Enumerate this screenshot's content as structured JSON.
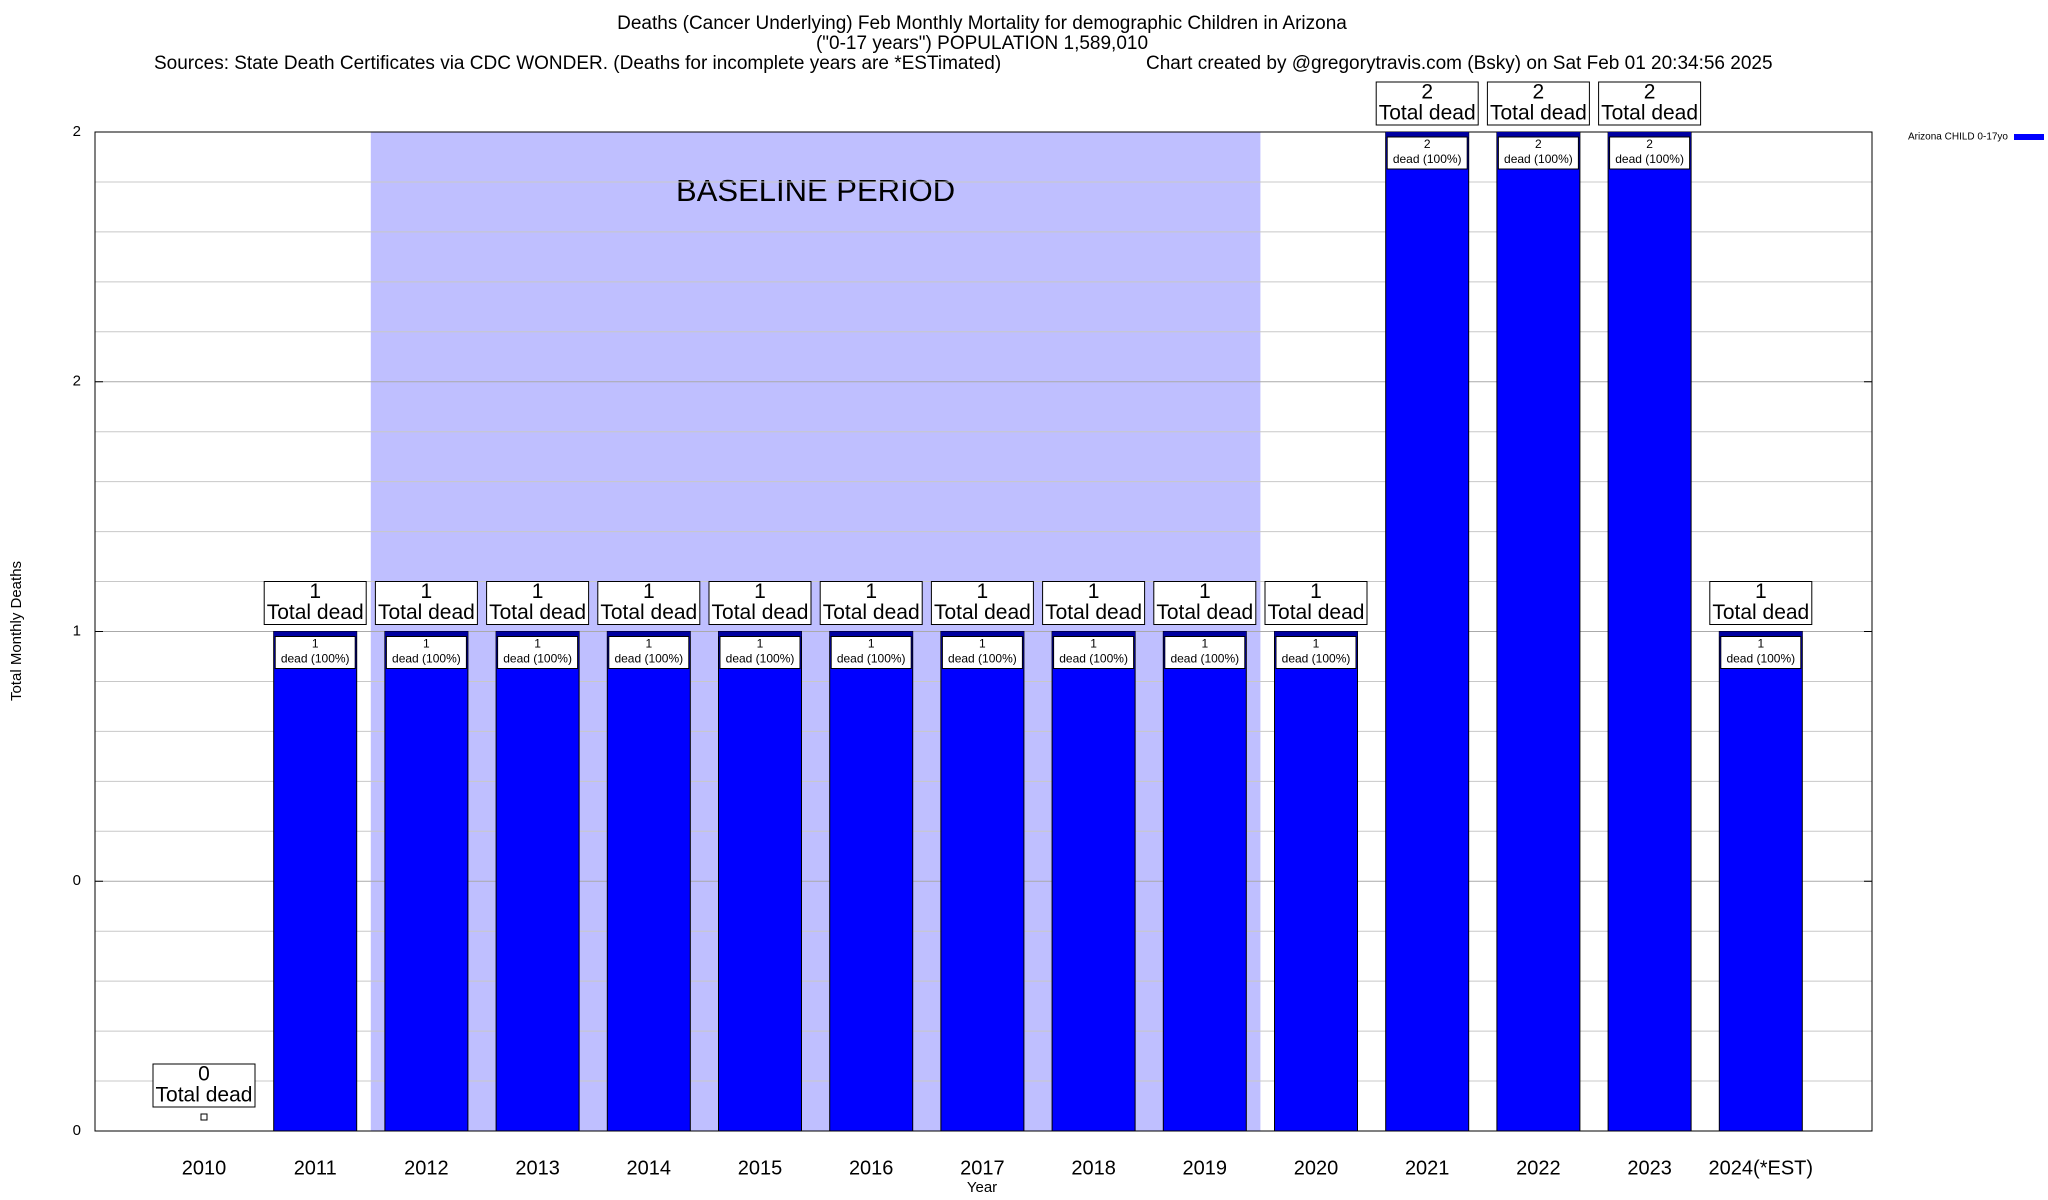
{
  "chart_data": {
    "type": "bar",
    "title": "Deaths (Cancer Underlying) Feb Monthly Mortality for demographic Children in Arizona",
    "subtitle": "(\"0-17 years\") POPULATION 1,589,010",
    "source": "Sources: State Death Certificates via CDC WONDER. (Deaths for incomplete years are *ESTimated)",
    "credit": "Chart created by @gregorytravis.com (Bsky) on Sat Feb 01 20:34:56 2025",
    "x_label": "Year",
    "y_label": "Total Monthly Deaths",
    "categories": [
      "2010",
      "2011",
      "2012",
      "2013",
      "2014",
      "2015",
      "2016",
      "2017",
      "2018",
      "2019",
      "2020",
      "2021",
      "2022",
      "2023",
      "2024(*EST)"
    ],
    "series": [
      {
        "name": "Arizona CHILD 0-17yo",
        "color": "#0000ff",
        "values": [
          0,
          1,
          1,
          1,
          1,
          1,
          1,
          1,
          1,
          1,
          1,
          2,
          2,
          2,
          1
        ]
      }
    ],
    "total_label": "Total dead",
    "inner_label": "dead (100%)",
    "baseline": {
      "label": "BASELINE PERIOD",
      "from": "2012",
      "to": "2019",
      "color": "#bfbfff"
    },
    "ylim": [
      0,
      2
    ],
    "yticks": [
      0,
      {
        "value": 0.5,
        "label": "0"
      },
      1,
      {
        "value": 1.5,
        "label": "2"
      },
      2
    ],
    "minor_yticks": [
      0.1,
      0.2,
      0.3,
      0.4,
      0.6,
      0.7,
      0.8,
      0.9,
      1.1,
      1.2,
      1.3,
      1.4,
      1.6,
      1.7,
      1.8,
      1.9
    ],
    "grid": true,
    "legend": "outside-top-right"
  }
}
